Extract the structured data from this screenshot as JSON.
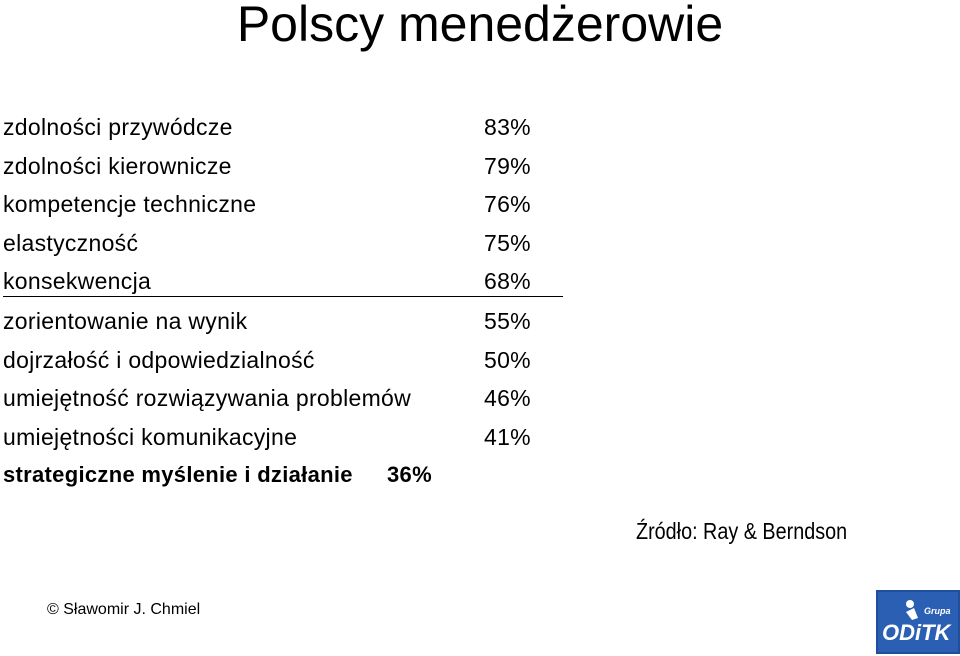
{
  "title": "Polscy menedżerowie",
  "items": [
    {
      "label": "zdolności przywódcze",
      "value": "83%"
    },
    {
      "label": "zdolności kierownicze",
      "value": "79%"
    },
    {
      "label": "kompetencje techniczne",
      "value": "76%"
    },
    {
      "label": "elastyczność",
      "value": "75%"
    },
    {
      "label": "konsekwencja",
      "value": "68%"
    },
    {
      "label": "zorientowanie na wynik",
      "value": "55%"
    },
    {
      "label": "dojrzałość i odpowiedzialność",
      "value": "50%"
    },
    {
      "label": "umiejętność rozwiązywania problemów",
      "value": "46%"
    },
    {
      "label": "umiejętności komunikacyjne",
      "value": "41%"
    },
    {
      "label": "strategiczne myślenie i działanie",
      "value": "36%"
    }
  ],
  "source": "Źródło: Ray & Berndson",
  "copyright": "© Sławomir J. Chmiel",
  "logo": {
    "small_text": "Grupa",
    "name": "ODiTK",
    "color": "#1f4e9c"
  }
}
